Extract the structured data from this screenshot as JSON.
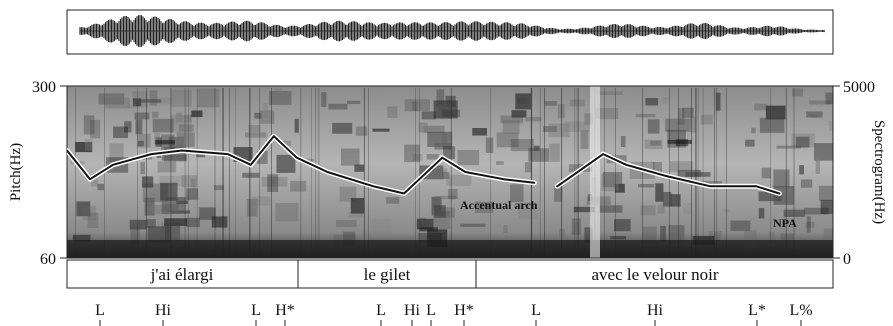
{
  "figure": {
    "left_axis": {
      "label": "Pitch(Hz)",
      "max": "300",
      "min": "60"
    },
    "right_axis": {
      "label": "Spectrogram(Hz)",
      "max": "5000",
      "min": "0"
    },
    "annotations": {
      "accentual_arch": "Accentual arch",
      "npa": "NPA"
    },
    "words": [
      {
        "text": "j'ai élargi"
      },
      {
        "text": "le gilet"
      },
      {
        "text": "avec le velour noir"
      }
    ],
    "tones": [
      {
        "text": "L"
      },
      {
        "text": "Hi"
      },
      {
        "text": "L"
      },
      {
        "text": "H*"
      },
      {
        "text": "L"
      },
      {
        "text": "Hi"
      },
      {
        "text": "L"
      },
      {
        "text": "H*"
      },
      {
        "text": "L"
      },
      {
        "text": "Hi"
      },
      {
        "text": "L*"
      },
      {
        "text": "L%"
      }
    ],
    "pitch_contour": {
      "unit": "Hz",
      "segments": [
        [
          [
            0.0,
            210
          ],
          [
            0.03,
            170
          ],
          [
            0.06,
            190
          ],
          [
            0.11,
            205
          ],
          [
            0.15,
            210
          ],
          [
            0.21,
            205
          ],
          [
            0.24,
            190
          ],
          [
            0.27,
            230
          ],
          [
            0.3,
            200
          ],
          [
            0.34,
            180
          ],
          [
            0.4,
            160
          ],
          [
            0.44,
            150
          ],
          [
            0.46,
            170
          ],
          [
            0.49,
            200
          ],
          [
            0.52,
            180
          ],
          [
            0.57,
            170
          ],
          [
            0.61,
            165
          ]
        ],
        [
          [
            0.64,
            160
          ],
          [
            0.66,
            175
          ],
          [
            0.7,
            205
          ],
          [
            0.73,
            190
          ],
          [
            0.78,
            175
          ],
          [
            0.84,
            160
          ],
          [
            0.9,
            160
          ],
          [
            0.93,
            150
          ]
        ]
      ]
    },
    "colors": {
      "ink": "#111111",
      "contour": "#111111",
      "contour_halo": "#ffffff"
    }
  }
}
